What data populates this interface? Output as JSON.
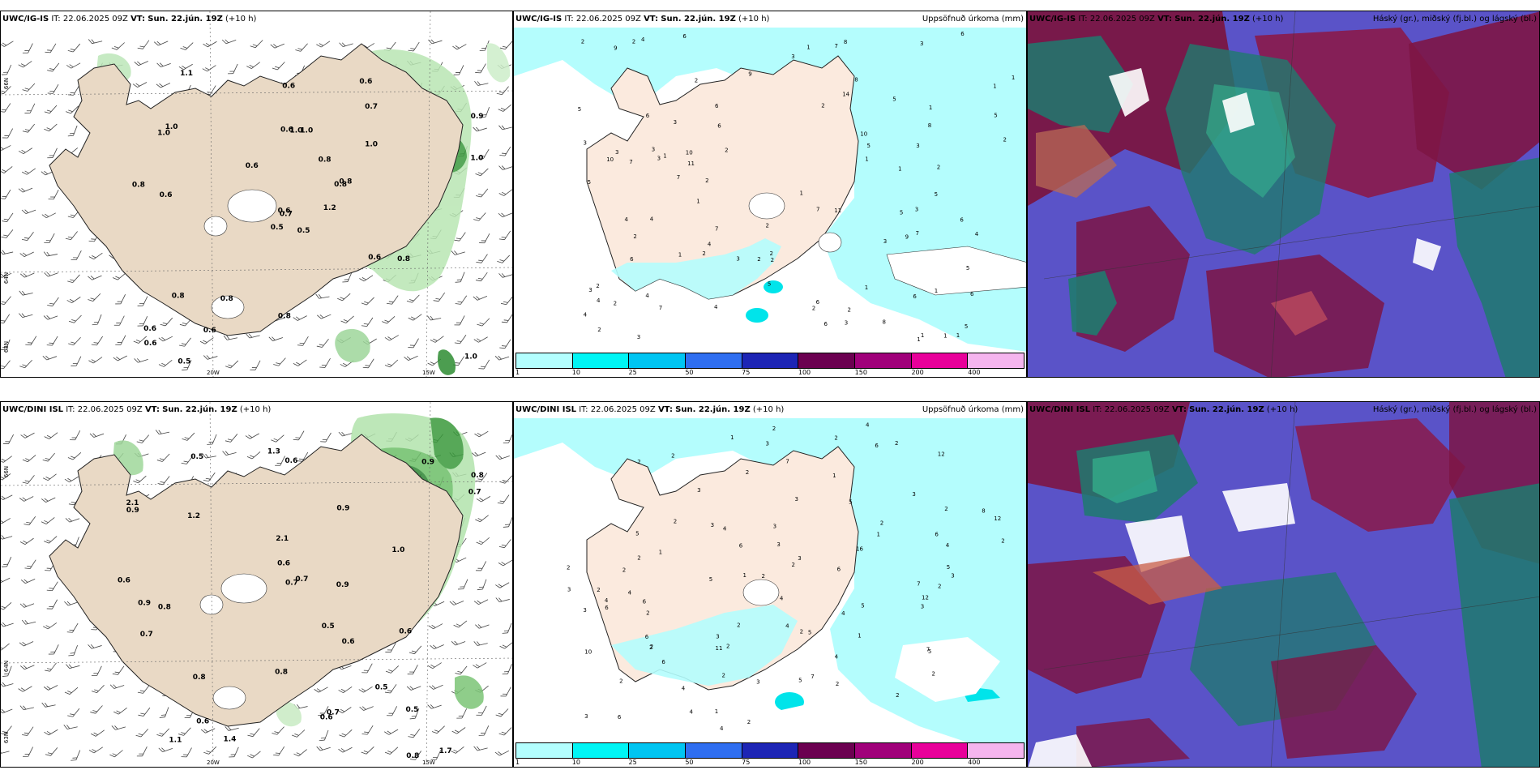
{
  "panels": [
    {
      "model": "UWC/IG-IS",
      "it_label": "IT:",
      "it": "22.06.2025 09Z",
      "vt_label": "VT:",
      "vt": "Sun. 22.jún. 19Z",
      "lead": "(+10 h)",
      "right_title": ""
    },
    {
      "model": "UWC/IG-IS",
      "it_label": "IT:",
      "it": "22.06.2025 09Z",
      "vt_label": "VT:",
      "vt": "Sun. 22.jún. 19Z",
      "lead": "(+10 h)",
      "right_title": "Uppsöfnuð úrkoma (mm)"
    },
    {
      "model": "UWC/IG-IS",
      "it_label": "IT:",
      "it": "22.06.2025 09Z",
      "vt_label": "VT:",
      "vt": "Sun. 22.jún. 19Z",
      "lead": "(+10 h)",
      "right_title": "Háský (gr.), miðský (fj.bl.) og lágský (bl.)"
    },
    {
      "model": "UWC/DINI ISL",
      "it_label": "IT:",
      "it": "22.06.2025 09Z",
      "vt_label": "VT:",
      "vt": "Sun. 22.jún. 19Z",
      "lead": "(+10 h)",
      "right_title": ""
    },
    {
      "model": "UWC/DINI ISL",
      "it_label": "IT:",
      "it": "22.06.2025 09Z",
      "vt_label": "VT:",
      "vt": "Sun. 22.jún. 19Z",
      "lead": "(+10 h)",
      "right_title": "Uppsöfnuð úrkoma (mm)"
    },
    {
      "model": "UWC/DINI ISL",
      "it_label": "IT:",
      "it": "22.06.2025 09Z",
      "vt_label": "VT:",
      "vt": "Sun. 22.jún. 19Z",
      "lead": "(+10 h)",
      "right_title": "Háský (gr.), miðský (fj.bl.) og lágský (bl.)"
    }
  ],
  "grid_labels": {
    "lat66": "66N",
    "lat64": "64N",
    "lat63": "63N",
    "lon20": "20W",
    "lon15": "15W"
  },
  "precip_legend": {
    "colors": [
      "#b3fefe",
      "#00f5f5",
      "#00c5f2",
      "#2f6ef0",
      "#1d25b5",
      "#6b0050",
      "#a0007a",
      "#e8009a",
      "#f5b5ee"
    ],
    "ticks": [
      "1",
      "10",
      "25",
      "50",
      "75",
      "100",
      "150",
      "200",
      "400"
    ]
  },
  "wind_values_top": [
    "0.5",
    "1.0",
    "0.7",
    "0.6",
    "0.8",
    "0.8",
    "0.6",
    "1.0",
    "0.7",
    "1.2",
    "1.1",
    "1.0",
    "0.6",
    "0.9",
    "0.5",
    "1.0",
    "0.5",
    "0.6",
    "0.8",
    "0.8",
    "0.6",
    "0.6",
    "0.6",
    "1.0",
    "0.8",
    "0.8",
    "1.0",
    "0.6",
    "0.8",
    "0.6",
    "1.0",
    "0.6",
    "0.8"
  ],
  "wind_values_bottom": [
    "0.6",
    "0.6",
    "1.0",
    "0.8",
    "2.1",
    "1.7",
    "0.8",
    "0.9",
    "2.1",
    "0.9",
    "0.7",
    "0.6",
    "1.3",
    "0.9",
    "1.2",
    "0.8",
    "0.7",
    "0.9",
    "0.5",
    "0.8",
    "0.5",
    "0.5",
    "0.7",
    "0.6",
    "0.6",
    "0.7",
    "0.6",
    "0.5",
    "1.4",
    "0.6",
    "0.7",
    "0.8",
    "0.9",
    "1.1"
  ],
  "precip_values_top": [
    "2",
    "3",
    "2",
    "3",
    "1",
    "2",
    "2",
    "1",
    "2",
    "1",
    "2",
    "1",
    "2",
    "1",
    "2",
    "1",
    "1",
    "2",
    "1",
    "2",
    "1",
    "1",
    "2",
    "1",
    "1",
    "1",
    "2",
    "2",
    "1",
    "3",
    "4",
    "3",
    "2",
    "5",
    "5",
    "3",
    "3",
    "4",
    "4",
    "4",
    "5",
    "5",
    "6",
    "8",
    "2",
    "4",
    "2",
    "3",
    "6",
    "8",
    "6",
    "3",
    "11",
    "3",
    "5",
    "10",
    "7",
    "9",
    "6",
    "4",
    "7",
    "9",
    "5",
    "5",
    "6",
    "10",
    "6",
    "2",
    "3",
    "7",
    "4",
    "3",
    "5",
    "8",
    "6",
    "6",
    "4",
    "7",
    "1",
    "1",
    "11",
    "2",
    "9",
    "14",
    "2",
    "3",
    "3",
    "7",
    "6",
    "10",
    "8",
    "3",
    "7",
    "5",
    "6",
    "7",
    "4",
    "5",
    "6"
  ],
  "precip_values_bottom": [
    "2",
    "2",
    "2",
    "3",
    "2",
    "1",
    "2",
    "2",
    "2",
    "2",
    "2",
    "2",
    "1",
    "2",
    "2",
    "1",
    "2",
    "2",
    "2",
    "1",
    "2",
    "3",
    "2",
    "3",
    "3",
    "2",
    "4",
    "2",
    "3",
    "5",
    "5",
    "6",
    "7",
    "4",
    "5",
    "6",
    "8",
    "6",
    "5",
    "12",
    "12",
    "7",
    "3",
    "6",
    "3",
    "2",
    "4",
    "5",
    "3",
    "4",
    "4",
    "4",
    "3",
    "4",
    "5",
    "5",
    "3",
    "7",
    "2",
    "2",
    "3",
    "4",
    "1",
    "1",
    "2",
    "10",
    "6",
    "16",
    "2",
    "2",
    "3",
    "4",
    "6",
    "4",
    "6",
    "4",
    "3",
    "2",
    "11",
    "12",
    "5",
    "3",
    "6",
    "2",
    "1",
    "2",
    "2",
    "3",
    "7",
    "4",
    "6"
  ]
}
